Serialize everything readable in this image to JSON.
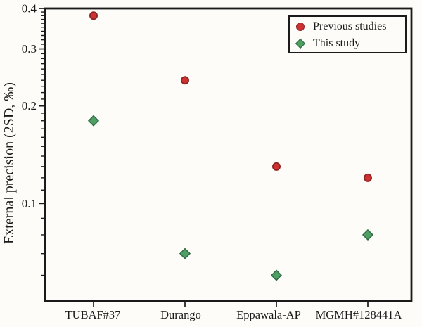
{
  "figure": {
    "background": "#fdfcf8",
    "frame_color": "#1a1a1a",
    "text_color": "#1a1a1a"
  },
  "chart_data": {
    "type": "scatter",
    "title": "",
    "xlabel": "",
    "ylabel": "External precision (2SD, ‰)",
    "yscale": "log",
    "ylim": [
      0.05,
      0.4
    ],
    "yticks": {
      "major": [
        0.4,
        0.3,
        0.2,
        0.1
      ],
      "major_labels": [
        "0.4",
        "0.3",
        "0.2",
        "0.1"
      ],
      "minor_step": 0.01
    },
    "grid": false,
    "legend_position": "top-right",
    "categories": [
      "TUBAF#37",
      "Durango",
      "Eppawala-AP",
      "MGMH#128441A"
    ],
    "series": [
      {
        "name": "Previous studies",
        "marker": "circle",
        "fill": "#cc3231",
        "stroke": "#8c2321",
        "values": [
          0.38,
          0.24,
          0.13,
          0.12
        ]
      },
      {
        "name": "This study",
        "marker": "diamond",
        "fill": "#4f9e63",
        "stroke": "#2f6b45",
        "values": [
          0.18,
          0.07,
          0.06,
          0.08
        ]
      }
    ]
  }
}
